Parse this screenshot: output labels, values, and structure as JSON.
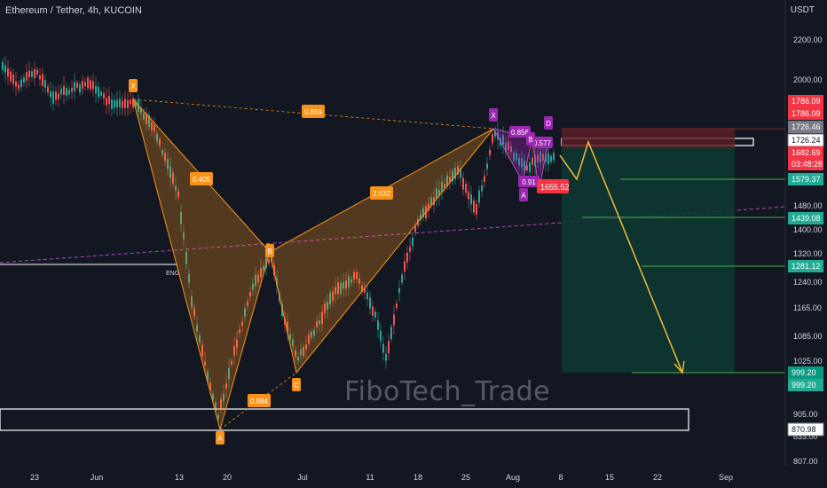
{
  "header": {
    "title": "Ethereum / Tether, 4h, KUCOIN",
    "currency": "USDT"
  },
  "watermark": "FiboTech_Trade",
  "axis": {
    "y_ticks": [
      "2200.00",
      "2000.00",
      "1480.00",
      "1400.00",
      "1320.00",
      "1240.00",
      "1165.00",
      "1085.00",
      "1025.00",
      "905.00",
      "833.00",
      "807.00"
    ],
    "x_ticks": [
      "23",
      "Jun",
      "13",
      "20",
      "Jul",
      "11",
      "18",
      "25",
      "Aug",
      "8",
      "15",
      "22",
      "Sep"
    ]
  },
  "price_tags": [
    {
      "text": "1786.09",
      "color": "#f23645"
    },
    {
      "text": "1786.09",
      "color": "#f23645"
    },
    {
      "text": "1726.46",
      "color": "#787b86"
    },
    {
      "text": "1726.24",
      "color": "#ffffff"
    },
    {
      "text": "1682.69",
      "color": "#f23645"
    },
    {
      "text": "03:48:28",
      "color": "#f23645"
    },
    {
      "text": "1579.37",
      "color": "#22ab94"
    },
    {
      "text": "1439.08",
      "color": "#22ab94"
    },
    {
      "text": "1281.12",
      "color": "#22ab94"
    },
    {
      "text": "999.20",
      "color": "#089981"
    },
    {
      "text": "999.20",
      "color": "#22ab94"
    },
    {
      "text": "870.98",
      "color": "#ffffff"
    }
  ],
  "pattern_big": {
    "points": [
      "X",
      "A",
      "B",
      "C"
    ],
    "ratios": [
      "0.859",
      "0.405",
      "0.884",
      "2.632"
    ],
    "color": "#f7931a"
  },
  "pattern_small": {
    "points": [
      "X",
      "A",
      "B",
      "D"
    ],
    "ratios": [
      "0.856",
      "0.91",
      "0.577"
    ],
    "color": "#9c27b0"
  },
  "labels": {
    "eng": "ENG",
    "current_price": "1655.52"
  }
}
